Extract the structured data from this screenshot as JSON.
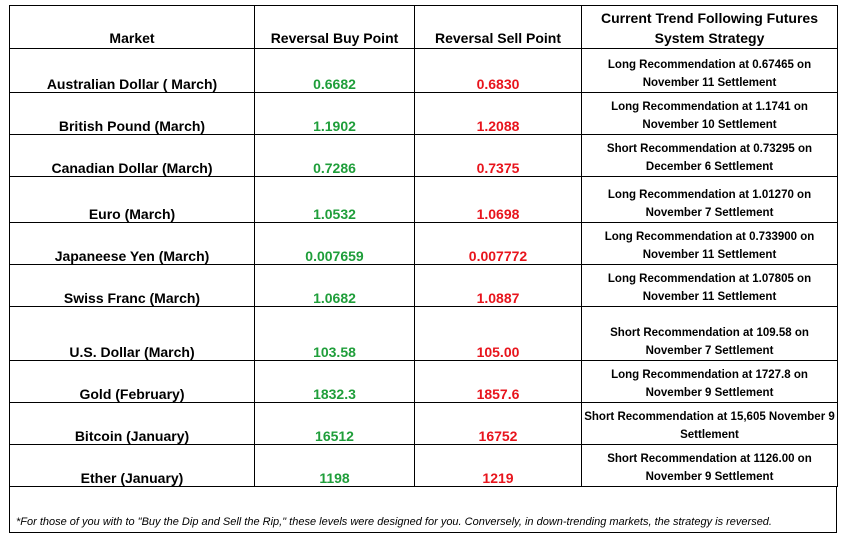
{
  "headers": {
    "market": "Market",
    "buy": "Reversal Buy Point",
    "sell": "Reversal Sell Point",
    "strategy": "Current Trend Following Futures System Strategy"
  },
  "rows": [
    {
      "market": "Australian Dollar ( March)",
      "buy": "0.6682",
      "sell": "0.6830",
      "strategy": "Long Recommendation at 0.67465 on November 11 Settlement"
    },
    {
      "market": "British Pound (March)",
      "buy": "1.1902",
      "sell": "1.2088",
      "strategy": "Long Recommendation at 1.1741 on November 10 Settlement"
    },
    {
      "market": "Canadian Dollar (March)",
      "buy": "0.7286",
      "sell": "0.7375",
      "strategy": "Short Recommendation at 0.73295 on December 6 Settlement"
    },
    {
      "market": "Euro (March)",
      "buy": "1.0532",
      "sell": "1.0698",
      "strategy": "Long Recommendation at 1.01270 on November 7 Settlement"
    },
    {
      "market": "Japaneese Yen (March)",
      "buy": "0.007659",
      "sell": "0.007772",
      "strategy": "Long Recommendation at 0.733900 on November 11 Settlement"
    },
    {
      "market": "Swiss Franc (March)",
      "buy": "1.0682",
      "sell": "1.0887",
      "strategy": "Long Recommendation at 1.07805 on November 11 Settlement"
    },
    {
      "market": "U.S. Dollar (March)",
      "buy": "103.58",
      "sell": "105.00",
      "strategy": "Short Recommendation at 109.58 on November 7 Settlement"
    },
    {
      "market": "Gold (February)",
      "buy": "1832.3",
      "sell": "1857.6",
      "strategy": "Long Recommendation at 1727.8 on November 9 Settlement"
    },
    {
      "market": "Bitcoin (January)",
      "buy": "16512",
      "sell": "16752",
      "strategy": "Short Recommendation at 15,605 November 9 Settlement"
    },
    {
      "market": "Ether (January)",
      "buy": "1198",
      "sell": "1219",
      "strategy": "Short Recommendation at 1126.00 on November 9 Settlement"
    }
  ],
  "footnote": "*For those of you with to \"Buy the Dip and Sell the Rip,\" these levels were designed for you. Conversely, in down-trending markets, the strategy is reversed.",
  "colors": {
    "buy": "#1f9e3a",
    "sell": "#e8141c"
  }
}
